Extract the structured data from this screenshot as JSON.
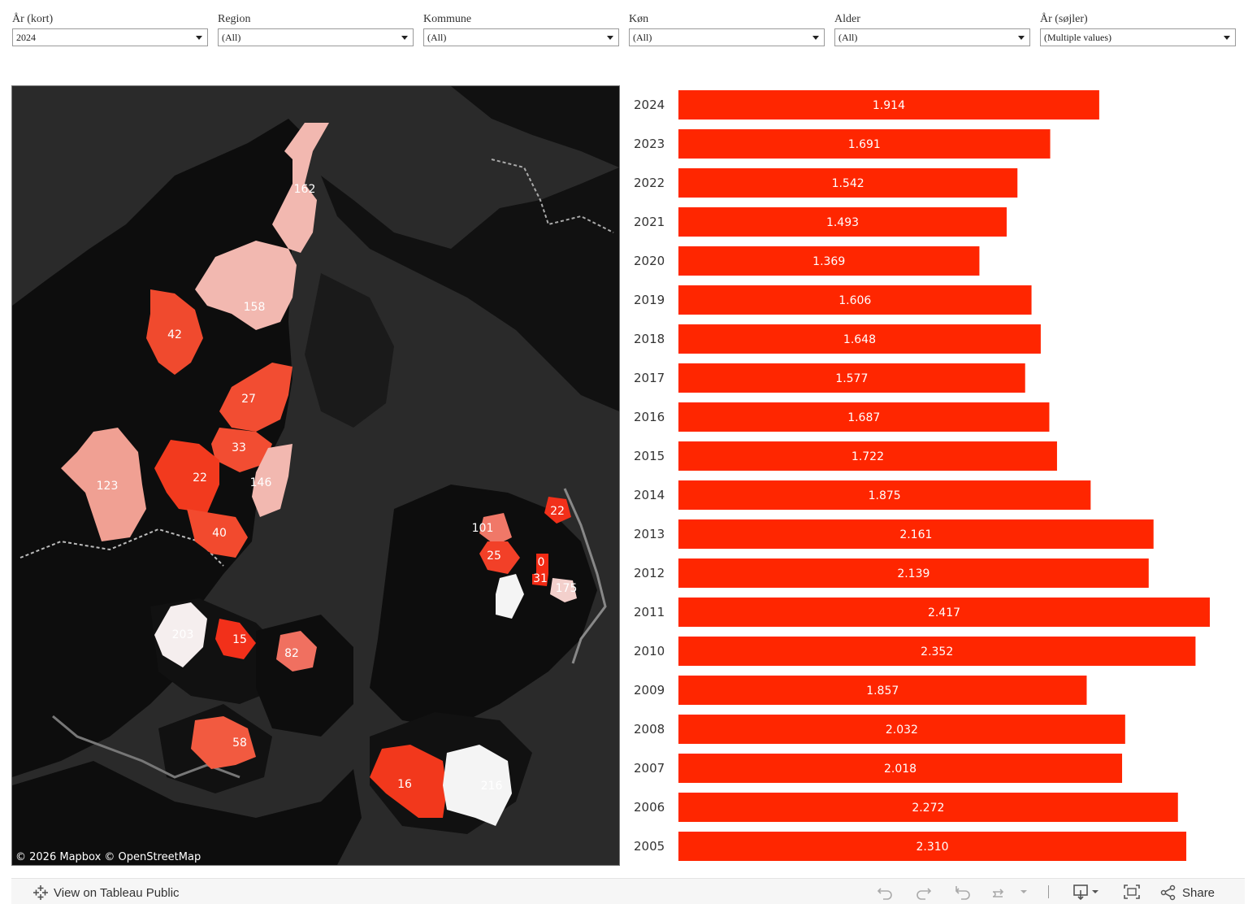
{
  "filters": [
    {
      "label": "År (kort)",
      "value": "2024"
    },
    {
      "label": "Region",
      "value": "(All)"
    },
    {
      "label": "Kommune",
      "value": "(All)"
    },
    {
      "label": "Køn",
      "value": "(All)"
    },
    {
      "label": "Alder",
      "value": "(All)"
    },
    {
      "label": "År (søjler)",
      "value": "(Multiple values)"
    }
  ],
  "map": {
    "attribution": "© 2026 Mapbox  © OpenStreetMap",
    "background_color": "#2a2a2a",
    "regions": [
      {
        "label": "162",
        "color": "#f2b8b0"
      },
      {
        "label": "158",
        "color": "#f2b8b0"
      },
      {
        "label": "42",
        "color": "#f04a2e"
      },
      {
        "label": "27",
        "color": "#f24d32"
      },
      {
        "label": "33",
        "color": "#f24d32"
      },
      {
        "label": "146",
        "color": "#f2b8b0"
      },
      {
        "label": "123",
        "color": "#f0a093"
      },
      {
        "label": "22",
        "color": "#f23a1e"
      },
      {
        "label": "40",
        "color": "#f24a2e"
      },
      {
        "label": "203",
        "color": "#f5eeee"
      },
      {
        "label": "15",
        "color": "#f2301a"
      },
      {
        "label": "82",
        "color": "#f07060"
      },
      {
        "label": "58",
        "color": "#f25a40"
      },
      {
        "label": "16",
        "color": "#f2381c"
      },
      {
        "label": "216",
        "color": "#f4f4f4"
      },
      {
        "label": "101",
        "color": "#f07868"
      },
      {
        "label": "25",
        "color": "#f24028"
      },
      {
        "label": "0",
        "color": "#f22a14"
      },
      {
        "label": "31",
        "color": "#f22a14"
      },
      {
        "label": "175",
        "color": "#f3d0cc"
      },
      {
        "label": "22",
        "color": "#f2301a"
      }
    ]
  },
  "chart_data": {
    "type": "bar",
    "orientation": "horizontal",
    "categories": [
      "2024",
      "2023",
      "2022",
      "2021",
      "2020",
      "2019",
      "2018",
      "2017",
      "2016",
      "2015",
      "2014",
      "2013",
      "2012",
      "2011",
      "2010",
      "2009",
      "2008",
      "2007",
      "2006",
      "2005"
    ],
    "values": [
      1914,
      1691,
      1542,
      1493,
      1369,
      1606,
      1648,
      1577,
      1687,
      1722,
      1875,
      2161,
      2139,
      2417,
      2352,
      1857,
      2032,
      2018,
      2272,
      2310
    ],
    "value_labels": [
      "1.914",
      "1.691",
      "1.542",
      "1.493",
      "1.369",
      "1.606",
      "1.648",
      "1.577",
      "1.687",
      "1.722",
      "1.875",
      "2.161",
      "2.139",
      "2.417",
      "2.352",
      "1.857",
      "2.032",
      "2.018",
      "2.272",
      "2.310"
    ],
    "xlim": [
      0,
      2417
    ],
    "grid": false,
    "bar_color": "#ff2600"
  },
  "footer": {
    "tableau_link": "View on Tableau Public",
    "share_label": "Share"
  }
}
